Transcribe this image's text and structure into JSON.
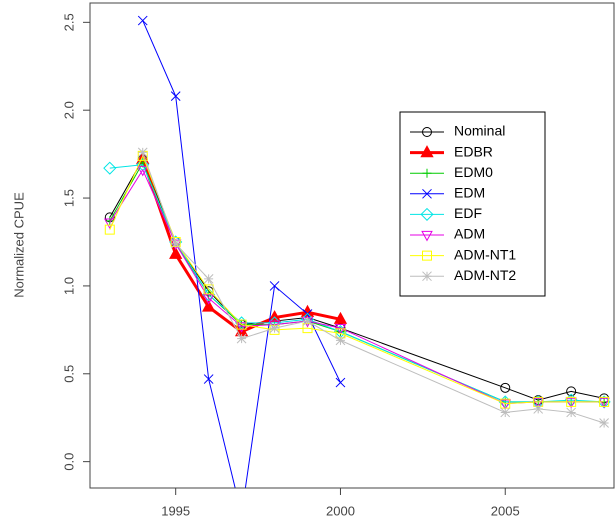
{
  "chart_data": {
    "type": "line",
    "y_label": "Normalized CPUE",
    "x": [
      1993,
      1994,
      1995,
      1996,
      1997,
      1998,
      1999,
      2000,
      2005,
      2006,
      2007,
      2008
    ],
    "xlim": [
      1992.4,
      2008.3
    ],
    "xticks": [
      1995,
      2000,
      2005
    ],
    "ylim": [
      -0.15,
      2.61
    ],
    "yticks": [
      {
        "value": 0,
        "label": "0.0"
      },
      0.5,
      {
        "value": 1,
        "label": "1.0"
      },
      1.5,
      {
        "value": 2,
        "label": "2.0"
      },
      2.5
    ],
    "series": [
      {
        "name": "Nominal",
        "color": "#000000",
        "marker": "circle",
        "width": 1,
        "values": [
          1.39,
          1.72,
          1.25,
          0.97,
          0.78,
          0.8,
          0.82,
          0.76,
          0.42,
          0.35,
          0.4,
          0.36
        ]
      },
      {
        "name": "EDBR",
        "color": "#ff0000",
        "marker": "triangle-filled",
        "width": 3,
        "values": [
          null,
          1.72,
          1.18,
          0.88,
          0.74,
          0.82,
          0.85,
          0.81,
          null,
          null,
          null,
          null
        ]
      },
      {
        "name": "EDM0",
        "color": "#00cc00",
        "marker": "plus",
        "width": 1,
        "values": [
          1.37,
          1.7,
          1.24,
          0.95,
          0.78,
          0.78,
          0.8,
          0.74,
          0.34,
          0.34,
          0.34,
          0.34
        ]
      },
      {
        "name": "EDM",
        "color": "#0000ff",
        "marker": "x",
        "width": 1,
        "values": [
          null,
          2.51,
          2.08,
          0.47,
          -0.3,
          1.0,
          0.84,
          0.45,
          null,
          null,
          null,
          null
        ]
      },
      {
        "name": "EDF",
        "color": "#00e5e5",
        "marker": "diamond",
        "width": 1,
        "values": [
          1.67,
          1.69,
          1.25,
          0.95,
          0.79,
          0.79,
          0.81,
          0.74,
          0.34,
          0.34,
          0.35,
          0.34
        ]
      },
      {
        "name": "ADM",
        "color": "#e600e6",
        "marker": "triangle-down",
        "width": 1,
        "values": [
          1.36,
          1.66,
          1.24,
          0.93,
          0.77,
          0.78,
          0.8,
          0.76,
          0.33,
          0.34,
          0.34,
          0.34
        ]
      },
      {
        "name": "ADM-NT1",
        "color": "#ffff00",
        "marker": "square",
        "width": 1,
        "values": [
          1.32,
          1.74,
          1.25,
          0.98,
          0.78,
          0.75,
          0.76,
          0.73,
          0.33,
          0.34,
          0.34,
          0.34
        ]
      },
      {
        "name": "ADM-NT2",
        "color": "#bdbdbd",
        "marker": "star",
        "width": 1,
        "values": [
          null,
          1.76,
          1.24,
          1.04,
          0.7,
          0.76,
          0.8,
          0.69,
          0.28,
          0.3,
          0.28,
          0.22
        ]
      }
    ]
  }
}
